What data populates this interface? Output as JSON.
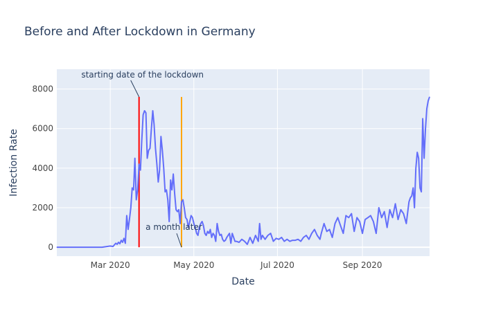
{
  "chart_data": {
    "type": "line",
    "title": "Before and After Lockdown in Germany",
    "xlabel": "Date",
    "ylabel": "Infection Rate",
    "x_range": [
      "2020-01-22",
      "2020-10-20"
    ],
    "ylim": [
      -450,
      9000
    ],
    "x_ticks": [
      {
        "date": "2020-03-01",
        "label": "Mar 2020"
      },
      {
        "date": "2020-05-01",
        "label": "May 2020"
      },
      {
        "date": "2020-07-01",
        "label": "Jul 2020"
      },
      {
        "date": "2020-09-01",
        "label": "Sep 2020"
      }
    ],
    "y_ticks": [
      0,
      2000,
      4000,
      6000,
      8000
    ],
    "y_tick_labels": [
      "0",
      "2000",
      "4000",
      "6000",
      "8000"
    ],
    "grid": true,
    "colors": {
      "plot_bg": "#E5ECF6",
      "grid": "#ffffff",
      "series": "#636EFA",
      "lockdown_line": "#ff0000",
      "month_later_line": "#FFA500",
      "text": "#2a3f5f",
      "tick_text": "#444444"
    },
    "series": [
      {
        "x": [
          "2020-01-22",
          "2020-01-29",
          "2020-02-05",
          "2020-02-12",
          "2020-02-19",
          "2020-02-24",
          "2020-02-27",
          "2020-03-01",
          "2020-03-03",
          "2020-03-05",
          "2020-03-06",
          "2020-03-07",
          "2020-03-08",
          "2020-03-09",
          "2020-03-10",
          "2020-03-11",
          "2020-03-12",
          "2020-03-13",
          "2020-03-14",
          "2020-03-15",
          "2020-03-16",
          "2020-03-17",
          "2020-03-18",
          "2020-03-19",
          "2020-03-20",
          "2020-03-21",
          "2020-03-22",
          "2020-03-23",
          "2020-03-24",
          "2020-03-25",
          "2020-03-26",
          "2020-03-27",
          "2020-03-28",
          "2020-03-29",
          "2020-03-30",
          "2020-03-31",
          "2020-04-01",
          "2020-04-02",
          "2020-04-03",
          "2020-04-04",
          "2020-04-05",
          "2020-04-06",
          "2020-04-07",
          "2020-04-08",
          "2020-04-09",
          "2020-04-10",
          "2020-04-11",
          "2020-04-12",
          "2020-04-13",
          "2020-04-14",
          "2020-04-15",
          "2020-04-16",
          "2020-04-17",
          "2020-04-18",
          "2020-04-19",
          "2020-04-20",
          "2020-04-21",
          "2020-04-22",
          "2020-04-23",
          "2020-04-24",
          "2020-04-25",
          "2020-04-26",
          "2020-04-27",
          "2020-04-28",
          "2020-04-29",
          "2020-04-30",
          "2020-05-01",
          "2020-05-02",
          "2020-05-03",
          "2020-05-04",
          "2020-05-05",
          "2020-05-06",
          "2020-05-07",
          "2020-05-08",
          "2020-05-09",
          "2020-05-10",
          "2020-05-11",
          "2020-05-12",
          "2020-05-13",
          "2020-05-14",
          "2020-05-15",
          "2020-05-16",
          "2020-05-17",
          "2020-05-18",
          "2020-05-19",
          "2020-05-20",
          "2020-05-21",
          "2020-05-22",
          "2020-05-23",
          "2020-05-24",
          "2020-05-25",
          "2020-05-26",
          "2020-05-27",
          "2020-05-28",
          "2020-05-29",
          "2020-05-30",
          "2020-05-31",
          "2020-06-01",
          "2020-06-03",
          "2020-06-05",
          "2020-06-07",
          "2020-06-09",
          "2020-06-11",
          "2020-06-13",
          "2020-06-15",
          "2020-06-17",
          "2020-06-18",
          "2020-06-19",
          "2020-06-20",
          "2020-06-21",
          "2020-06-22",
          "2020-06-24",
          "2020-06-26",
          "2020-06-28",
          "2020-06-30",
          "2020-07-02",
          "2020-07-04",
          "2020-07-06",
          "2020-07-08",
          "2020-07-10",
          "2020-07-12",
          "2020-07-14",
          "2020-07-16",
          "2020-07-18",
          "2020-07-20",
          "2020-07-22",
          "2020-07-24",
          "2020-07-26",
          "2020-07-28",
          "2020-07-30",
          "2020-08-01",
          "2020-08-02",
          "2020-08-04",
          "2020-08-06",
          "2020-08-08",
          "2020-08-10",
          "2020-08-12",
          "2020-08-14",
          "2020-08-16",
          "2020-08-18",
          "2020-08-20",
          "2020-08-22",
          "2020-08-24",
          "2020-08-26",
          "2020-08-28",
          "2020-08-30",
          "2020-09-01",
          "2020-09-03",
          "2020-09-05",
          "2020-09-07",
          "2020-09-09",
          "2020-09-11",
          "2020-09-13",
          "2020-09-15",
          "2020-09-17",
          "2020-09-19",
          "2020-09-21",
          "2020-09-23",
          "2020-09-25",
          "2020-09-27",
          "2020-09-29",
          "2020-10-01",
          "2020-10-03",
          "2020-10-05",
          "2020-10-06",
          "2020-10-07",
          "2020-10-08",
          "2020-10-09",
          "2020-10-10",
          "2020-10-11",
          "2020-10-12",
          "2020-10-13",
          "2020-10-14",
          "2020-10-15",
          "2020-10-16",
          "2020-10-17",
          "2020-10-18",
          "2020-10-19",
          "2020-10-20"
        ],
        "y": [
          0,
          0,
          0,
          0,
          0,
          0,
          30,
          60,
          40,
          200,
          150,
          250,
          180,
          350,
          250,
          450,
          200,
          1600,
          900,
          1400,
          2000,
          3000,
          2900,
          4500,
          2400,
          2900,
          4200,
          3900,
          5400,
          6700,
          6900,
          6800,
          4500,
          4900,
          5000,
          6000,
          6900,
          6200,
          5000,
          4200,
          3300,
          3900,
          5600,
          4900,
          4000,
          2800,
          2900,
          2400,
          1300,
          3400,
          2900,
          3700,
          2700,
          1900,
          1800,
          1900,
          1200,
          2300,
          2400,
          2000,
          1500,
          1400,
          1000,
          1300,
          1600,
          1500,
          1200,
          1000,
          700,
          600,
          1000,
          1200,
          1300,
          1100,
          700,
          600,
          800,
          700,
          900,
          500,
          700,
          600,
          300,
          1200,
          800,
          600,
          650,
          400,
          300,
          350,
          500,
          600,
          700,
          200,
          700,
          500,
          300,
          300,
          250,
          400,
          300,
          150,
          500,
          200,
          600,
          300,
          1200,
          400,
          600,
          500,
          400,
          600,
          700,
          300,
          450,
          400,
          500,
          300,
          400,
          300,
          350,
          350,
          400,
          300,
          500,
          600,
          400,
          700,
          900,
          600,
          400,
          700,
          1200,
          800,
          900,
          500,
          1200,
          1500,
          1100,
          700,
          1600,
          1500,
          1700,
          800,
          1500,
          1300,
          700,
          1400,
          1500,
          1600,
          1300,
          700,
          2000,
          1500,
          1800,
          1000,
          1900,
          1500,
          2200,
          1400,
          1900,
          1700,
          1200,
          2300,
          2500,
          2600,
          3000,
          2000,
          4000,
          4800,
          4500,
          3000,
          2800,
          6500,
          4500,
          6000,
          7000,
          7400,
          7600
        ]
      }
    ],
    "vertical_lines": [
      {
        "date": "2020-03-22",
        "y0": 0,
        "y1": 7600
      },
      {
        "date": "2020-04-22",
        "y0": 0,
        "y1": 7600
      }
    ],
    "annotations": [
      {
        "text": "starting date of the lockdown",
        "date": "2020-03-22",
        "y": 7600
      },
      {
        "text": "a month later",
        "date": "2020-04-22",
        "y": 0
      }
    ]
  }
}
